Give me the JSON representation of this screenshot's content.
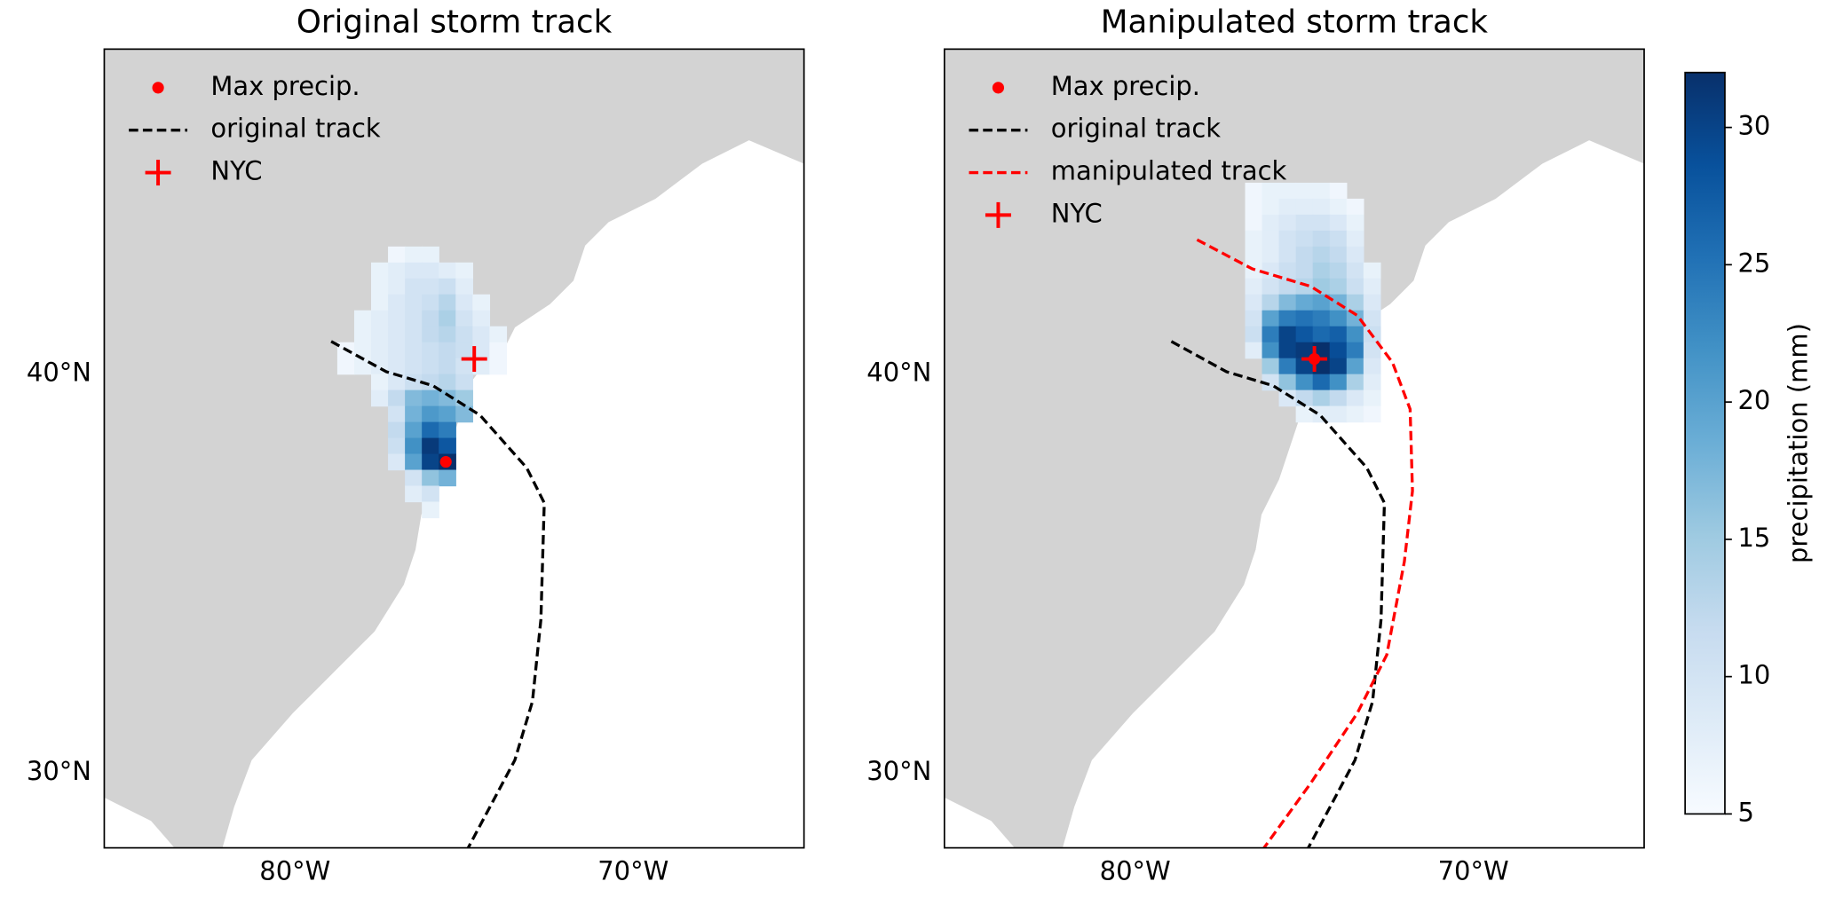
{
  "chart_data": [
    {
      "type": "map",
      "title": "Original storm track",
      "xlim": [
        -85.64,
        -64.95
      ],
      "ylim": [
        28.12,
        48.15
      ],
      "xticks": [
        {
          "value": -80,
          "label": "80°W"
        },
        {
          "value": -70,
          "label": "70°W"
        }
      ],
      "yticks": [
        {
          "value": 30,
          "label": "30°N"
        },
        {
          "value": 40,
          "label": "40°N"
        }
      ],
      "grid": {
        "lon": [
          -78.5,
          -78,
          -77.5,
          -77,
          -76.5,
          -76,
          -75.5,
          -75,
          -74.5,
          -74
        ],
        "lat": [
          43.0,
          42.6,
          42.2,
          41.8,
          41.4,
          41.0,
          40.6,
          40.2,
          39.8,
          39.4,
          39.0,
          38.6,
          38.2,
          37.8,
          37.4,
          37.0,
          36.6
        ],
        "values": [
          [
            null,
            null,
            null,
            6,
            7,
            7,
            null,
            null,
            null,
            null
          ],
          [
            null,
            null,
            7,
            8,
            9,
            9,
            8,
            7,
            null,
            null
          ],
          [
            null,
            null,
            7,
            8,
            10,
            10,
            11,
            8,
            null,
            null
          ],
          [
            null,
            null,
            7,
            9,
            10,
            11,
            13,
            9,
            7,
            null
          ],
          [
            null,
            7,
            8,
            9,
            10,
            12,
            14,
            10,
            8,
            null
          ],
          [
            null,
            7,
            8,
            9,
            10,
            12,
            13,
            11,
            9,
            7
          ],
          [
            6,
            7,
            8,
            9,
            10,
            11,
            12,
            11,
            9,
            6
          ],
          [
            6,
            7,
            8,
            9,
            10,
            11,
            12,
            10,
            8,
            6
          ],
          [
            null,
            null,
            7,
            9,
            11,
            12,
            13,
            11,
            null,
            null
          ],
          [
            null,
            null,
            8,
            12,
            17,
            18,
            17,
            15,
            null,
            null
          ],
          [
            null,
            null,
            null,
            10,
            18,
            21,
            20,
            17,
            null,
            null
          ],
          [
            null,
            null,
            null,
            12,
            20,
            26,
            24,
            null,
            null,
            null
          ],
          [
            null,
            null,
            null,
            11,
            22,
            31,
            28,
            null,
            null,
            null
          ],
          [
            null,
            null,
            null,
            9,
            20,
            30,
            32,
            null,
            null,
            null
          ],
          [
            null,
            null,
            null,
            null,
            10,
            16,
            18,
            null,
            null,
            null
          ],
          [
            null,
            null,
            null,
            null,
            8,
            10,
            null,
            null,
            null,
            null
          ],
          [
            null,
            null,
            null,
            null,
            null,
            7,
            null,
            null,
            null,
            null
          ]
        ]
      },
      "series": [
        {
          "name": "Max precip.",
          "type": "dot",
          "color": "#ff0000",
          "x": [
            -75.54
          ],
          "y": [
            37.8
          ]
        },
        {
          "name": "original track",
          "type": "dashed",
          "color": "#000000",
          "x": [
            -78.93,
            -77.3,
            -75.92,
            -74.53,
            -73.15,
            -72.63,
            -72.73,
            -72.98,
            -73.5,
            -74.88
          ],
          "y": [
            40.82,
            40.06,
            39.71,
            38.97,
            37.65,
            36.77,
            33.84,
            31.79,
            30.32,
            28.12
          ]
        },
        {
          "name": "NYC",
          "type": "plus",
          "color": "#ff0000",
          "x": [
            -74.7
          ],
          "y": [
            40.38
          ]
        }
      ]
    },
    {
      "type": "map",
      "title": "Manipulated storm track",
      "xlim": [
        -85.64,
        -64.95
      ],
      "ylim": [
        28.12,
        48.15
      ],
      "xticks": [
        {
          "value": -80,
          "label": "80°W"
        },
        {
          "value": -70,
          "label": "70°W"
        }
      ],
      "yticks": [
        {
          "value": 30,
          "label": "30°N"
        },
        {
          "value": 40,
          "label": "40°N"
        }
      ],
      "grid": {
        "lon": [
          -76.5,
          -76,
          -75.5,
          -75,
          -74.5,
          -74,
          -73.5,
          -73
        ],
        "lat": [
          44.6,
          44.2,
          43.8,
          43.4,
          43.0,
          42.6,
          42.2,
          41.8,
          41.4,
          41.0,
          40.6,
          40.2,
          39.8,
          39.4,
          39.0
        ],
        "values": [
          [
            6,
            7,
            7,
            7,
            7,
            6,
            null,
            null
          ],
          [
            6,
            7,
            8,
            8,
            8,
            7,
            6,
            null
          ],
          [
            6,
            8,
            9,
            10,
            10,
            9,
            7,
            null
          ],
          [
            7,
            8,
            10,
            11,
            12,
            11,
            8,
            null
          ],
          [
            7,
            8,
            10,
            12,
            13,
            12,
            9,
            null
          ],
          [
            7,
            9,
            11,
            12,
            14,
            13,
            10,
            7
          ],
          [
            8,
            10,
            12,
            13,
            15,
            14,
            11,
            8
          ],
          [
            9,
            13,
            17,
            19,
            20,
            18,
            14,
            9
          ],
          [
            10,
            20,
            24,
            25,
            24,
            22,
            18,
            10
          ],
          [
            11,
            24,
            30,
            28,
            26,
            27,
            22,
            11
          ],
          [
            8,
            22,
            30,
            31,
            32,
            29,
            24,
            10
          ],
          [
            null,
            15,
            24,
            30,
            32,
            30,
            20,
            9
          ],
          [
            null,
            10,
            16,
            22,
            26,
            22,
            14,
            8
          ],
          [
            null,
            null,
            9,
            12,
            14,
            12,
            9,
            7
          ],
          [
            null,
            null,
            null,
            7,
            8,
            8,
            7,
            6
          ]
        ]
      },
      "series": [
        {
          "name": "Max precip.",
          "type": "dot",
          "color": "#ff0000",
          "x": [
            -74.7
          ],
          "y": [
            40.38
          ]
        },
        {
          "name": "original track",
          "type": "dashed",
          "color": "#000000",
          "x": [
            -78.93,
            -77.3,
            -75.92,
            -74.53,
            -73.15,
            -72.63,
            -72.73,
            -72.98,
            -73.5,
            -74.88
          ],
          "y": [
            40.82,
            40.06,
            39.71,
            38.97,
            37.65,
            36.77,
            33.84,
            31.79,
            30.32,
            28.12
          ]
        },
        {
          "name": "manipulated track",
          "type": "dashed",
          "color": "#ff0000",
          "x": [
            -78.17,
            -76.54,
            -74.81,
            -73.43,
            -72.39,
            -71.87,
            -71.8,
            -72.04,
            -72.56,
            -73.43,
            -74.81,
            -76.19
          ],
          "y": [
            43.37,
            42.64,
            42.2,
            41.47,
            40.29,
            39.12,
            37.07,
            35.3,
            32.96,
            31.5,
            29.74,
            28.12
          ]
        },
        {
          "name": "NYC",
          "type": "plus",
          "color": "#ff0000",
          "x": [
            -74.7
          ],
          "y": [
            40.38
          ]
        }
      ],
      "colorbar": {
        "label": "precipitation (mm)",
        "lim": [
          5,
          32
        ],
        "ticks": [
          5,
          10,
          15,
          20,
          25,
          30
        ],
        "colors": [
          "#f7fbff",
          "#deebf7",
          "#c6dbef",
          "#9ecae1",
          "#6baed6",
          "#4292c6",
          "#2171b5",
          "#08519c",
          "#08306b"
        ]
      }
    }
  ]
}
